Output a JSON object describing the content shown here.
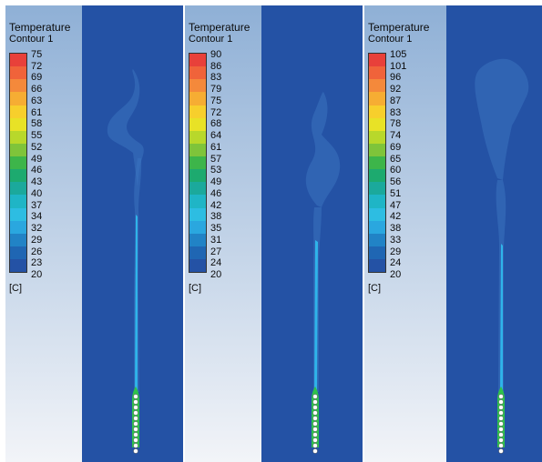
{
  "colors": {
    "background_field": "#2452a5",
    "legend_bg_top": "#8fb0d6",
    "legend_bg_bottom": "#f2f4f8",
    "colormap": [
      "#e8403a",
      "#f0633a",
      "#f4893b",
      "#f6ad33",
      "#f7cf2c",
      "#e8e226",
      "#b8d82b",
      "#7fc43a",
      "#3db54a",
      "#1daa6f",
      "#1ba99c",
      "#1fb5c6",
      "#2dbde2",
      "#2aa7df",
      "#2183c6",
      "#1f66b3",
      "#2452a5"
    ],
    "plume_halo": "#3a72c0",
    "plume_core": "#2fb4ea",
    "heater_ring": "#2fc24b",
    "heater_dot": "#ffffff"
  },
  "panels": [
    {
      "title": "Temperature",
      "subtitle": "Contour 1",
      "ticks": [
        "75",
        "72",
        "69",
        "66",
        "63",
        "61",
        "58",
        "55",
        "52",
        "49",
        "46",
        "43",
        "40",
        "37",
        "34",
        "32",
        "29",
        "26",
        "23",
        "20"
      ],
      "unit": "[C]"
    },
    {
      "title": "Temperature",
      "subtitle": "Contour 1",
      "ticks": [
        "90",
        "86",
        "83",
        "79",
        "75",
        "72",
        "68",
        "64",
        "61",
        "57",
        "53",
        "49",
        "46",
        "42",
        "38",
        "35",
        "31",
        "27",
        "24",
        "20"
      ],
      "unit": "[C]"
    },
    {
      "title": "Temperature",
      "subtitle": "Contour 1",
      "ticks": [
        "105",
        "101",
        "96",
        "92",
        "87",
        "83",
        "78",
        "74",
        "69",
        "65",
        "60",
        "56",
        "51",
        "47",
        "42",
        "38",
        "33",
        "29",
        "24",
        "20"
      ],
      "unit": "[C]"
    }
  ]
}
